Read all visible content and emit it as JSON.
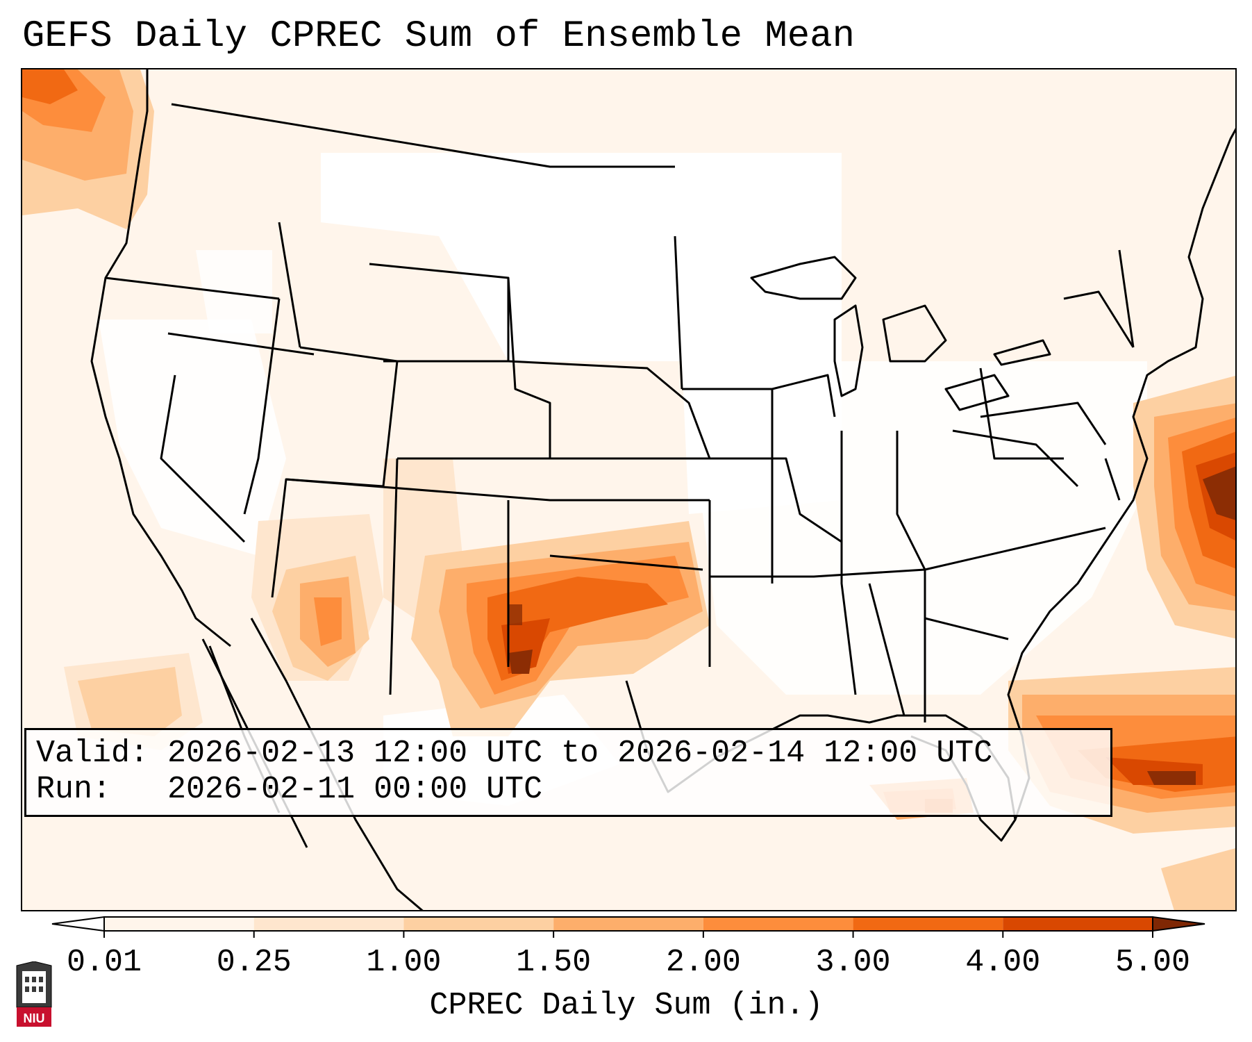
{
  "title": "GEFS Daily CPREC Sum of Ensemble Mean",
  "info": {
    "valid_label": "Valid:",
    "valid_value": "2026-02-13 12:00 UTC to 2026-02-14 12:00 UTC",
    "run_label": "Run:",
    "run_value": "2026-02-11 00:00 UTC"
  },
  "colorbar": {
    "label": "CPREC Daily Sum (in.)",
    "ticks": [
      "0.01",
      "0.25",
      "1.00",
      "1.50",
      "2.00",
      "3.00",
      "4.00",
      "5.00"
    ],
    "colors": [
      "#fff5eb",
      "#fee6ce",
      "#fdd0a2",
      "#fdae6b",
      "#fd8d3c",
      "#f16913",
      "#d94801",
      "#8c2d04"
    ],
    "over_color": "#7f2704",
    "under_color": "#ffffff"
  },
  "logo": {
    "text": "NIU",
    "color": "#c8102e"
  },
  "colors": {
    "outline": "#000000",
    "ocean_bg": "#ffffff"
  }
}
